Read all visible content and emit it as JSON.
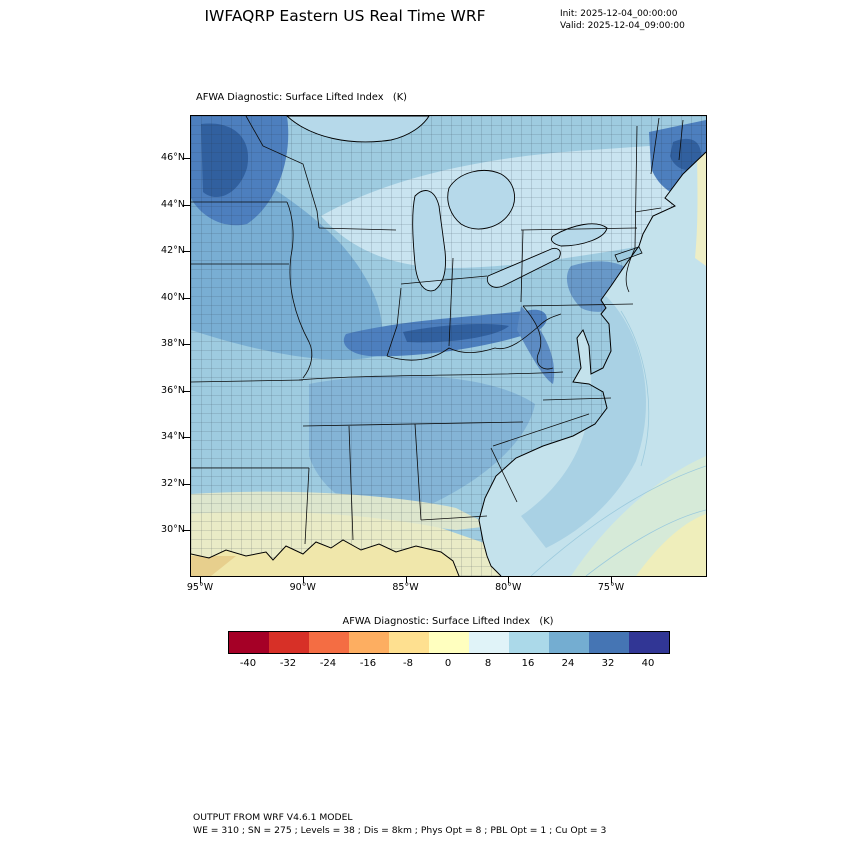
{
  "figure": {
    "title": "IWFAQRP Eastern US Real Time WRF",
    "init_line": "Init: 2025-12-04_00:00:00",
    "valid_line": "Valid: 2025-12-04_09:00:00"
  },
  "map": {
    "title": "AFWA Diagnostic: Surface Lifted Index   (K)",
    "lat_ticks": [
      "46°N",
      "44°N",
      "42°N",
      "40°N",
      "38°N",
      "36°N",
      "34°N",
      "32°N",
      "30°N"
    ],
    "lon_ticks": [
      "95°W",
      "90°W",
      "85°W",
      "80°W",
      "75°W"
    ]
  },
  "colorbar": {
    "title": "AFWA Diagnostic: Surface Lifted Index   (K)",
    "ticks": [
      -40,
      -32,
      -24,
      -16,
      -8,
      0,
      8,
      16,
      24,
      32,
      40
    ],
    "colors": [
      "#a50026",
      "#d73027",
      "#f46d43",
      "#fdae61",
      "#fee090",
      "#ffffbf",
      "#e0f3f8",
      "#abd9e9",
      "#74add1",
      "#4575b4",
      "#313695"
    ]
  },
  "footer": {
    "line1": "OUTPUT FROM WRF V4.6.1 MODEL",
    "line2": "WE = 310 ; SN = 275 ; Levels = 38 ; Dis = 8km ; Phys Opt = 8 ; PBL Opt = 1 ; Cu Opt = 3"
  },
  "chart_data": {
    "type": "heatmap",
    "title": "AFWA Diagnostic: Surface Lifted Index (K)",
    "variable": "Surface Lifted Index",
    "units": "K",
    "init_time": "2025-12-04_00:00:00",
    "valid_time": "2025-12-04_09:00:00",
    "x_axis": {
      "label": "",
      "tick_labels": [
        "95°W",
        "90°W",
        "85°W",
        "80°W",
        "75°W"
      ]
    },
    "y_axis": {
      "label": "",
      "tick_labels": [
        "46°N",
        "44°N",
        "42°N",
        "40°N",
        "38°N",
        "36°N",
        "34°N",
        "32°N",
        "30°N"
      ]
    },
    "colorbar": {
      "ticks": [
        -40,
        -32,
        -24,
        -16,
        -8,
        0,
        8,
        16,
        24,
        32,
        40
      ],
      "colors": [
        "#a50026",
        "#d73027",
        "#f46d43",
        "#fdae61",
        "#fee090",
        "#ffffbf",
        "#e0f3f8",
        "#abd9e9",
        "#74add1",
        "#4575b4",
        "#313695"
      ]
    },
    "field_regions": [
      {
        "region": "Upper Midwest (MN/WI/N Iowa)",
        "approx_value_K": "24 to 36"
      },
      {
        "region": "Kentucky / Ohio Valley band",
        "approx_value_K": "24 to 36"
      },
      {
        "region": "Northern New England (Maine)",
        "approx_value_K": "24 to 36"
      },
      {
        "region": "Most interior eastern US land",
        "approx_value_K": "8 to 24"
      },
      {
        "region": "Great Lakes",
        "approx_value_K": "8 to 16"
      },
      {
        "region": "Atlantic offshore waters",
        "approx_value_K": "4 to 12"
      },
      {
        "region": "Gulf of Mexico coast and waters",
        "approx_value_K": "-4 to 4"
      },
      {
        "region": "Far southeast Atlantic corner",
        "approx_value_K": "-4 to 4"
      }
    ],
    "model_info": "OUTPUT FROM WRF V4.6.1 MODEL; WE = 310 ; SN = 275 ; Levels = 38 ; Dis = 8km ; Phys Opt = 8 ; PBL Opt = 1 ; Cu Opt = 3"
  }
}
